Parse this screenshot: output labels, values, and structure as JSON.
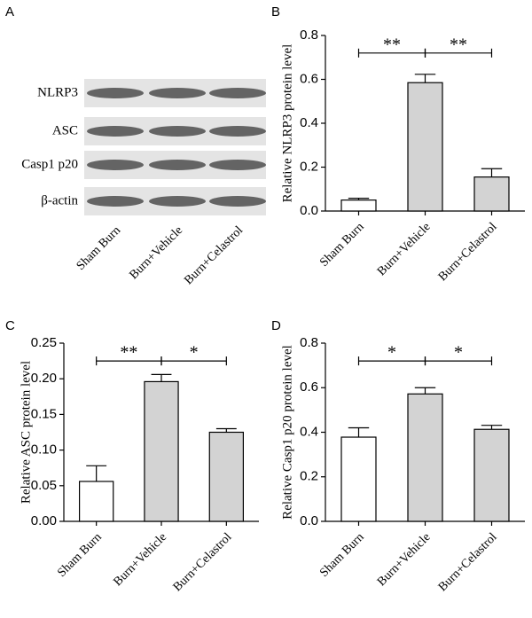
{
  "blot": {
    "panel": "A",
    "proteins": [
      "NLRP3",
      "ASC",
      "Casp1 p20",
      "β-actin"
    ],
    "categories": [
      "Sham Burn",
      "Burn+Vehicle",
      "Burn+Celastrol"
    ]
  },
  "chart_data": [
    {
      "type": "bar",
      "panel": "B",
      "ylabel": "Relative NLRP3 protein level",
      "categories": [
        "Sham Burn",
        "Burn+Vehicle",
        "Burn+Celastrol"
      ],
      "values": [
        0.05,
        0.585,
        0.155
      ],
      "errors": [
        0.008,
        0.038,
        0.038
      ],
      "colors": [
        "#ffffff",
        "#d3d3d3",
        "#d3d3d3"
      ],
      "ylim": [
        0,
        0.8
      ],
      "yticks": [
        {
          "value": 0,
          "label": "0.0"
        },
        0.2,
        0.4,
        0.6,
        0.8
      ],
      "significance": [
        {
          "between": [
            0,
            1
          ],
          "label": "**"
        },
        {
          "between": [
            1,
            2
          ],
          "label": "**"
        }
      ]
    },
    {
      "type": "bar",
      "panel": "C",
      "ylabel": "Relative ASC protein level",
      "categories": [
        "Sham Burn",
        "Burn+Vehicle",
        "Burn+Celastrol"
      ],
      "values": [
        0.056,
        0.196,
        0.125
      ],
      "errors": [
        0.022,
        0.01,
        0.005
      ],
      "colors": [
        "#ffffff",
        "#d3d3d3",
        "#d3d3d3"
      ],
      "ylim": [
        0,
        0.25
      ],
      "yticks": [
        {
          "value": 0,
          "label": "0.00"
        },
        0.05,
        {
          "value": 0.1,
          "label": "0.10"
        },
        0.15,
        {
          "value": 0.2,
          "label": "0.20"
        },
        0.25
      ],
      "significance": [
        {
          "between": [
            0,
            1
          ],
          "label": "**"
        },
        {
          "between": [
            1,
            2
          ],
          "label": "*"
        }
      ]
    },
    {
      "type": "bar",
      "panel": "D",
      "ylabel": "Relative Casp1 p20 protein level",
      "categories": [
        "Sham Burn",
        "Burn+Vehicle",
        "Burn+Celastrol"
      ],
      "values": [
        0.378,
        0.572,
        0.413
      ],
      "errors": [
        0.042,
        0.028,
        0.018
      ],
      "colors": [
        "#ffffff",
        "#d3d3d3",
        "#d3d3d3"
      ],
      "ylim": [
        0,
        0.8
      ],
      "yticks": [
        {
          "value": 0,
          "label": "0.0"
        },
        0.2,
        0.4,
        0.6,
        0.8
      ],
      "significance": [
        {
          "between": [
            0,
            1
          ],
          "label": "*"
        },
        {
          "between": [
            1,
            2
          ],
          "label": "*"
        }
      ]
    }
  ]
}
